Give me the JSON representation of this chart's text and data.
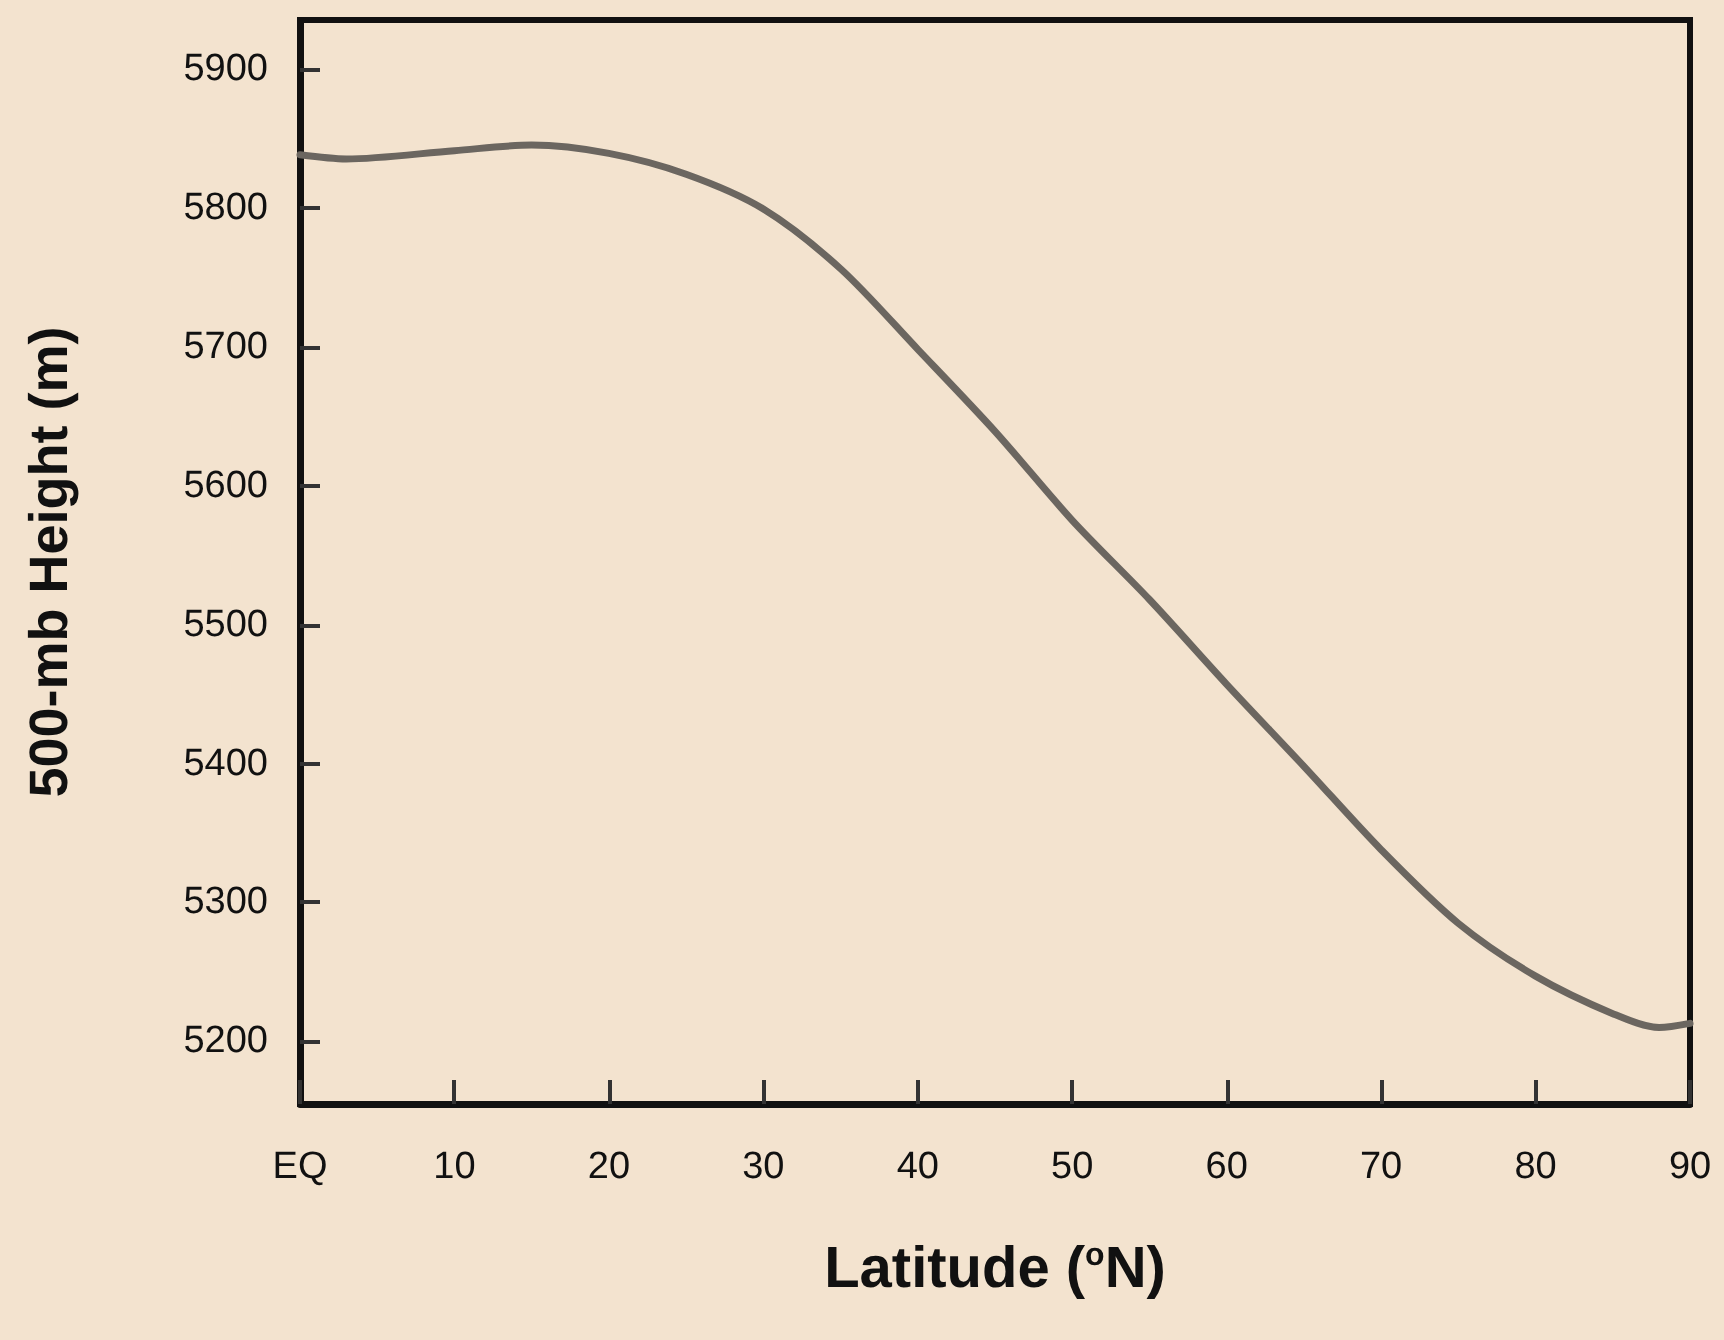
{
  "chart_data": {
    "type": "line",
    "xlabel": "Latitude ($^{o}$N)",
    "ylabel": "500-mb Height (m)",
    "x": [
      0,
      3,
      10,
      15,
      20,
      25,
      30,
      35,
      40,
      45,
      50,
      55,
      60,
      65,
      70,
      75,
      80,
      85,
      88,
      90
    ],
    "series": [
      {
        "color": "#6b6660",
        "values": [
          5838,
          5835,
          5841,
          5845,
          5839,
          5824,
          5799,
          5756,
          5698,
          5639,
          5575,
          5518,
          5457,
          5398,
          5338,
          5285,
          5247,
          5220,
          5210,
          5213
        ]
      }
    ],
    "xlim": [
      0,
      90
    ],
    "xticks": [
      {
        "value": 0,
        "label": "EQ"
      },
      10,
      20,
      30,
      40,
      50,
      60,
      70,
      80,
      90
    ],
    "ylim": [
      5155,
      5935
    ],
    "yticks": [
      5200,
      5300,
      5400,
      5500,
      5600,
      5700,
      5800,
      5900
    ],
    "grid": false,
    "marker": "none",
    "line_style": "solid"
  }
}
